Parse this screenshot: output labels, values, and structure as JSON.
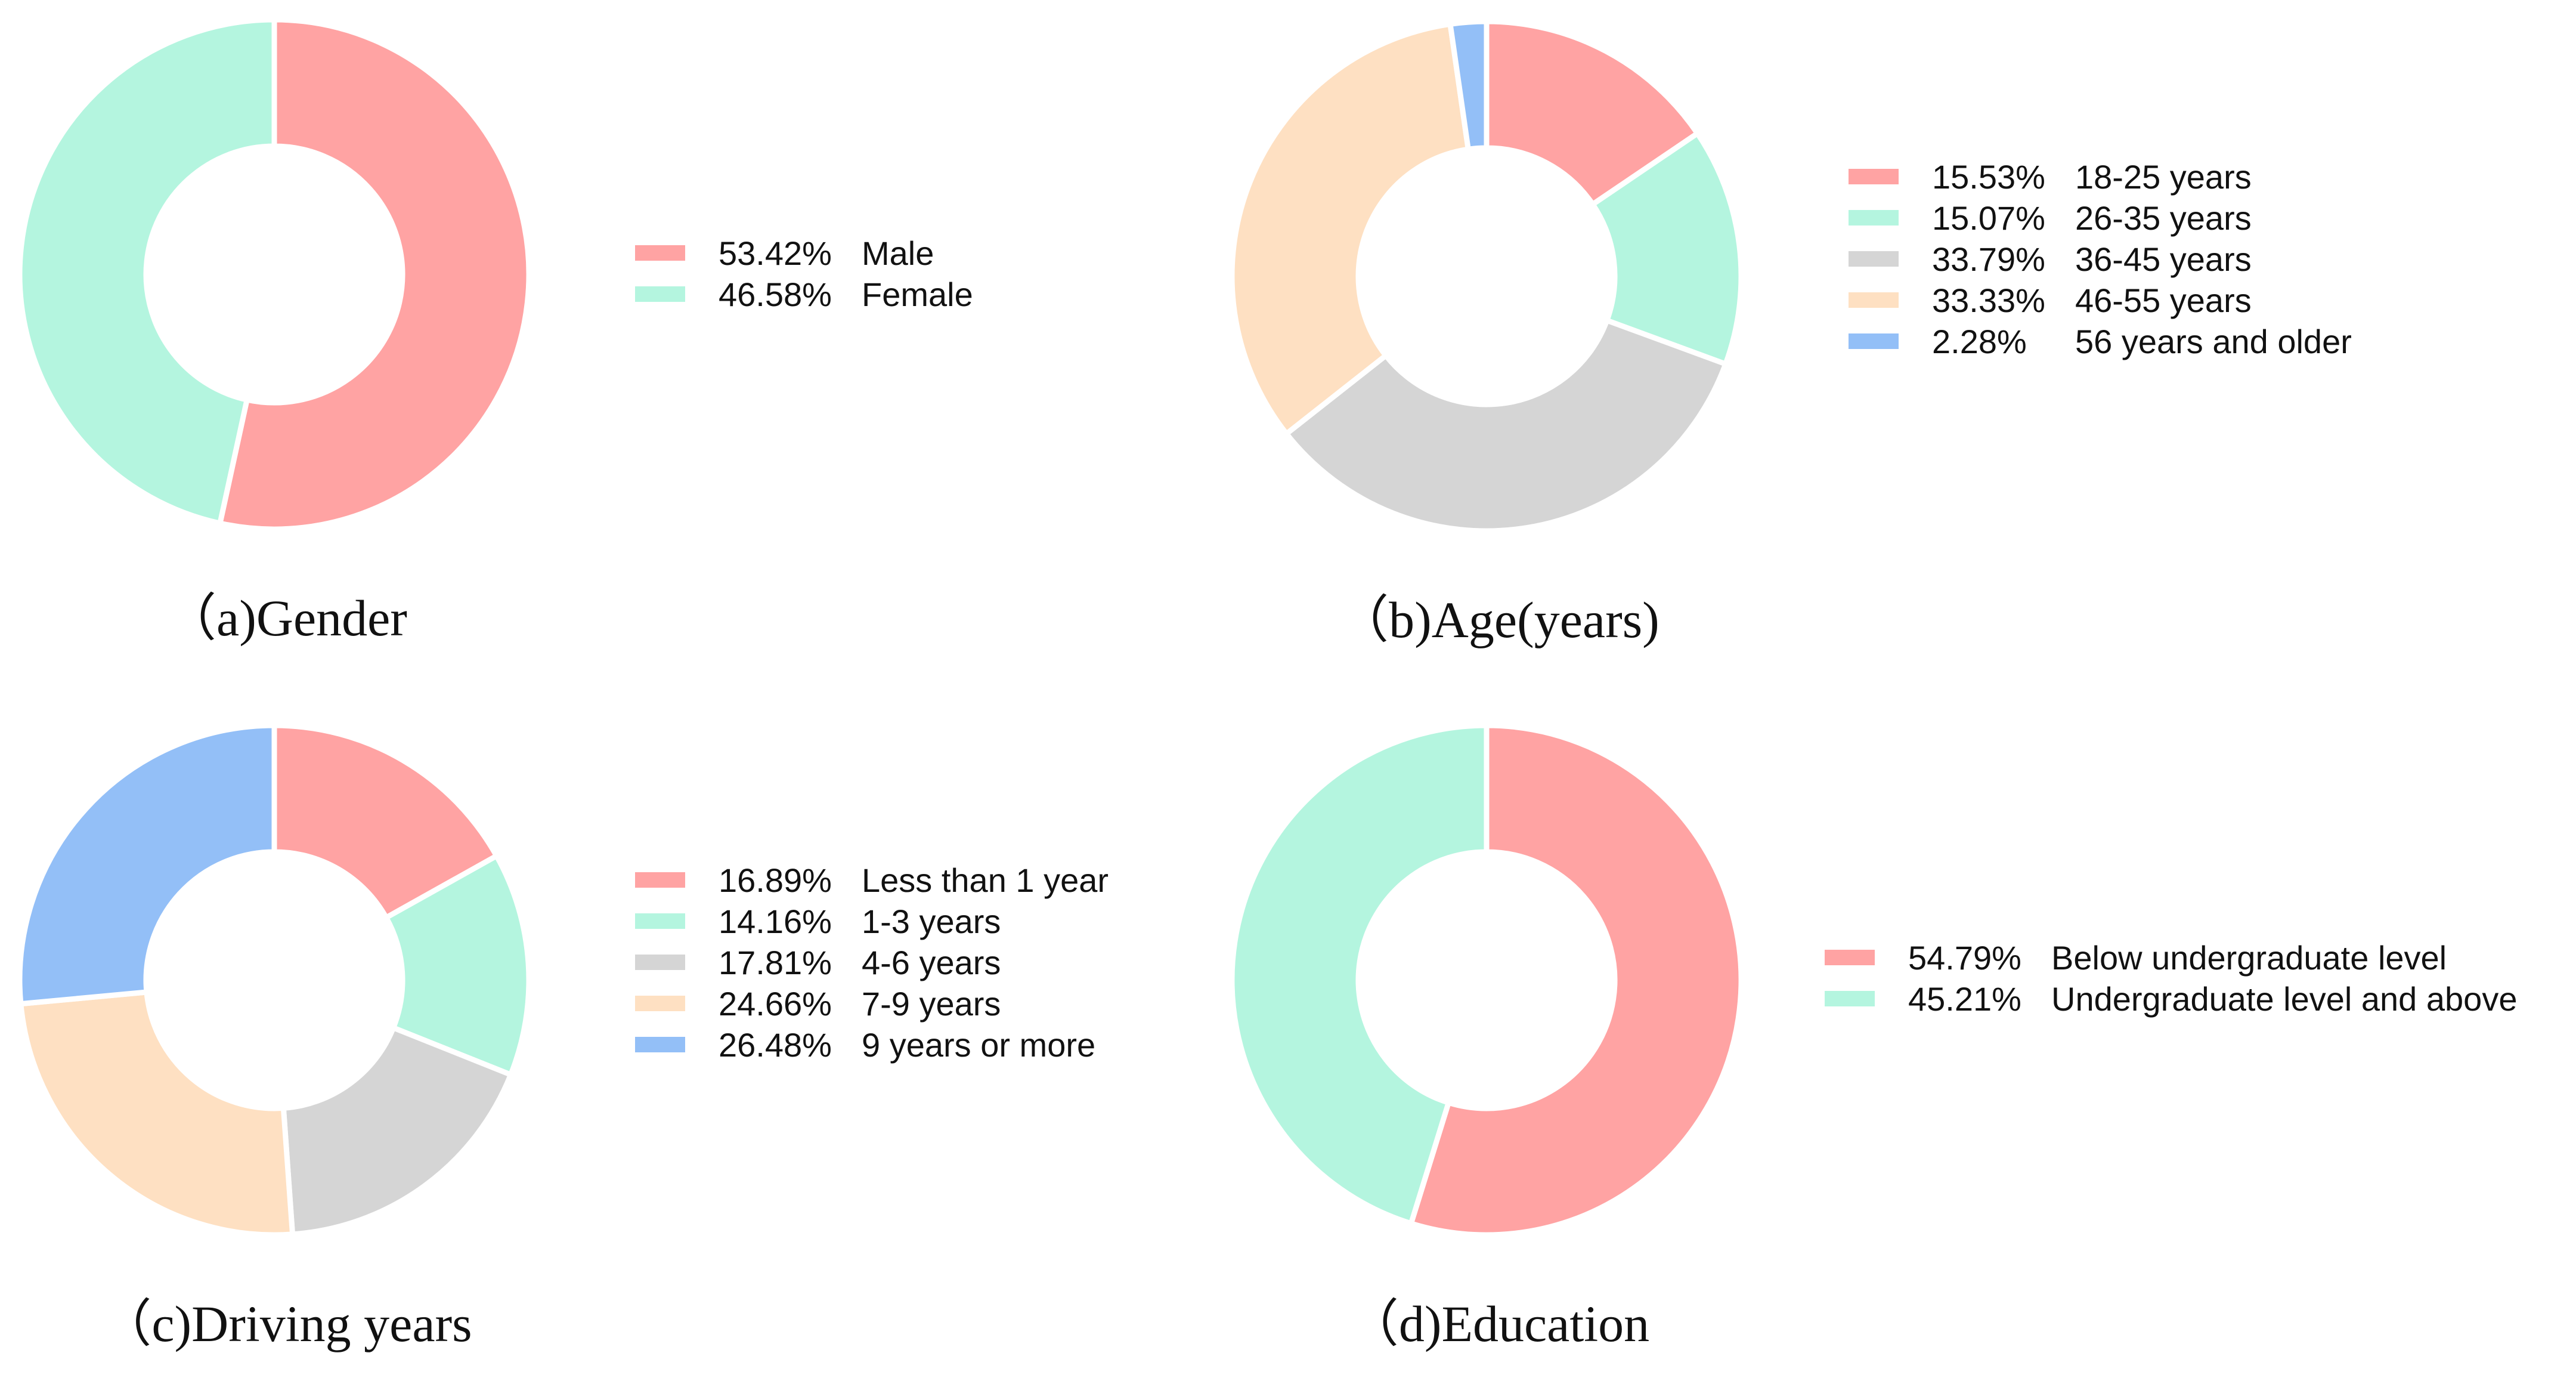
{
  "chart_data": [
    {
      "type": "donut",
      "caption": "（a)Gender",
      "slices": [
        {
          "label": "Male",
          "percent": 53.42,
          "display": "53.42%",
          "color": "#FFA3A3"
        },
        {
          "label": "Female",
          "percent": 46.58,
          "display": "46.58%",
          "color": "#B4F5DF"
        }
      ]
    },
    {
      "type": "donut",
      "caption": "（b)Age(years)",
      "slices": [
        {
          "label": "18-25 years",
          "percent": 15.53,
          "display": "15.53%",
          "color": "#FFA3A3"
        },
        {
          "label": "26-35 years",
          "percent": 15.07,
          "display": "15.07%",
          "color": "#B4F5DF"
        },
        {
          "label": "36-45 years",
          "percent": 33.79,
          "display": "33.79%",
          "color": "#D5D5D5"
        },
        {
          "label": "46-55 years",
          "percent": 33.33,
          "display": "33.33%",
          "color": "#FEE0C2"
        },
        {
          "label": "56 years and older",
          "percent": 2.28,
          "display": "2.28%",
          "color": "#93BFF7"
        }
      ]
    },
    {
      "type": "donut",
      "caption": "（c)Driving years",
      "slices": [
        {
          "label": "Less than 1 year",
          "percent": 16.89,
          "display": "16.89%",
          "color": "#FFA3A3"
        },
        {
          "label": "1-3 years",
          "percent": 14.16,
          "display": "14.16%",
          "color": "#B4F5DF"
        },
        {
          "label": "4-6 years",
          "percent": 17.81,
          "display": "17.81%",
          "color": "#D5D5D5"
        },
        {
          "label": "7-9 years",
          "percent": 24.66,
          "display": "24.66%",
          "color": "#FEE0C2"
        },
        {
          "label": "9 years or more",
          "percent": 26.48,
          "display": "26.48%",
          "color": "#93BFF7"
        }
      ]
    },
    {
      "type": "donut",
      "caption": "（d)Education",
      "slices": [
        {
          "label": "Below undergraduate level",
          "percent": 54.79,
          "display": "54.79%",
          "color": "#FFA3A3"
        },
        {
          "label": "Undergraduate level and above",
          "percent": 45.21,
          "display": "45.21%",
          "color": "#B4F5DF"
        }
      ]
    }
  ]
}
